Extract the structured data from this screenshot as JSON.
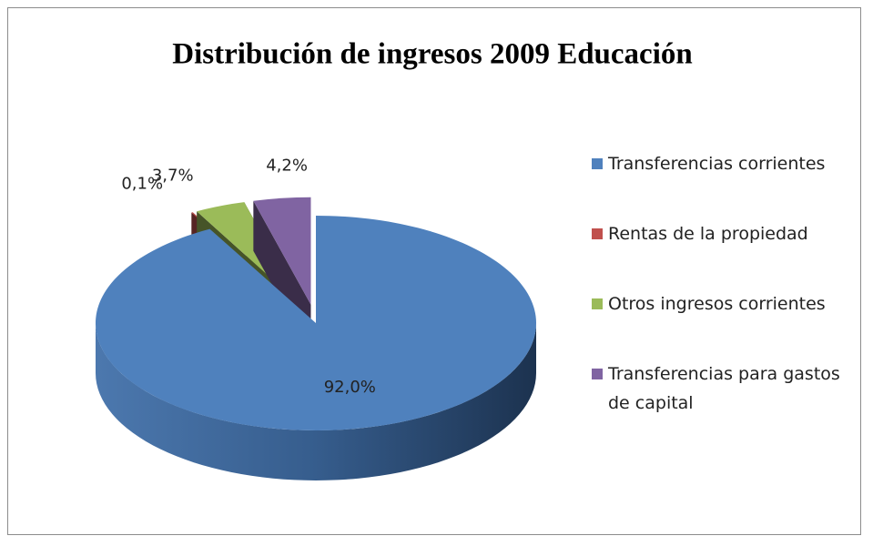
{
  "chart_data": {
    "type": "pie",
    "title": "Distribución de ingresos 2009 Educación",
    "categories": [
      "Transferencias corrientes",
      "Rentas de la propiedad",
      "Otros ingresos corrientes",
      "Transferencias para gastos de capital"
    ],
    "values": [
      92.0,
      0.1,
      3.7,
      4.2
    ],
    "value_labels": [
      "92,0%",
      "0,1%",
      "3,7%",
      "4,2%"
    ],
    "colors": [
      "#4f81bd",
      "#c0504d",
      "#9bbb59",
      "#8064a2"
    ],
    "legend": "right"
  }
}
